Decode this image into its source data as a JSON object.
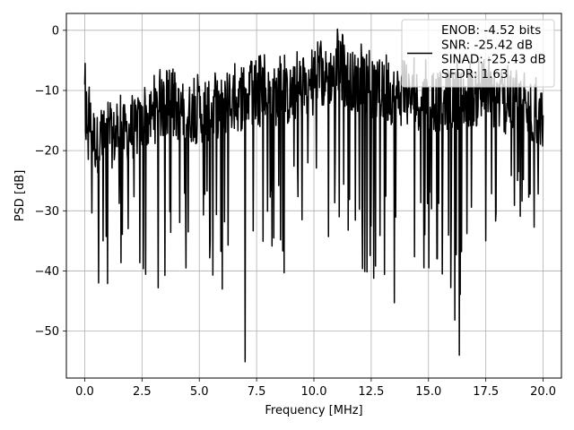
{
  "chart_data": {
    "type": "line",
    "xlabel": "Frequency [MHz]",
    "ylabel": "PSD [dB]",
    "xlim": [
      -0.8,
      20.8
    ],
    "ylim": [
      -57.8,
      2.8
    ],
    "x_ticks": [
      0.0,
      2.5,
      5.0,
      7.5,
      10.0,
      12.5,
      15.0,
      17.5,
      20.0
    ],
    "x_tick_labels": [
      "0.0",
      "2.5",
      "5.0",
      "7.5",
      "10.0",
      "12.5",
      "15.0",
      "17.5",
      "20.0"
    ],
    "y_ticks": [
      0,
      -10,
      -20,
      -30,
      -40,
      -50
    ],
    "y_tick_labels": [
      "0",
      "−10",
      "−20",
      "−30",
      "−40",
      "−50"
    ],
    "grid": true,
    "legend_position": "top-right",
    "series": [
      {
        "name": "ENOB: -4.52 bits\nSNR: -25.42 dB\nSINAD: -25.43 dB\nSFDR: 1.63",
        "color": "#000000",
        "x_range": [
          0.0,
          20.0
        ],
        "num_points": 1024,
        "description": "noise floor PSD",
        "envelope_upper": [
          [
            0.0,
            -5.5
          ],
          [
            0.5,
            -12
          ],
          [
            2.5,
            -9
          ],
          [
            3.3,
            -6
          ],
          [
            5.0,
            -7
          ],
          [
            7.5,
            -4
          ],
          [
            9.0,
            -4
          ],
          [
            11.0,
            0
          ],
          [
            12.5,
            -3
          ],
          [
            15.0,
            -5
          ],
          [
            17.5,
            -4
          ],
          [
            20.0,
            -8
          ]
        ],
        "envelope_lower": [
          [
            0.0,
            -20
          ],
          [
            0.3,
            -33
          ],
          [
            0.6,
            -42
          ],
          [
            1.0,
            -42
          ],
          [
            2.0,
            -39
          ],
          [
            3.2,
            -43
          ],
          [
            5.0,
            -38
          ],
          [
            6.0,
            -43
          ],
          [
            7.0,
            -55
          ],
          [
            8.0,
            -36
          ],
          [
            8.7,
            -38
          ],
          [
            11.0,
            -36
          ],
          [
            13.5,
            -45
          ],
          [
            15.5,
            -40
          ],
          [
            16.35,
            -54
          ],
          [
            18.0,
            -34
          ],
          [
            19.9,
            -34
          ],
          [
            20.0,
            -22
          ]
        ],
        "notable_points": [
          [
            7.0,
            -55.1
          ],
          [
            16.35,
            -54.0
          ],
          [
            11.03,
            0.2
          ],
          [
            13.5,
            -45.3
          ],
          [
            3.2,
            -42.8
          ],
          [
            0.6,
            -42.0
          ],
          [
            1.0,
            -42.1
          ],
          [
            6.0,
            -43.0
          ],
          [
            5.6,
            -40.7
          ],
          [
            8.7,
            -40.3
          ],
          [
            15.6,
            -40.5
          ]
        ]
      }
    ]
  }
}
